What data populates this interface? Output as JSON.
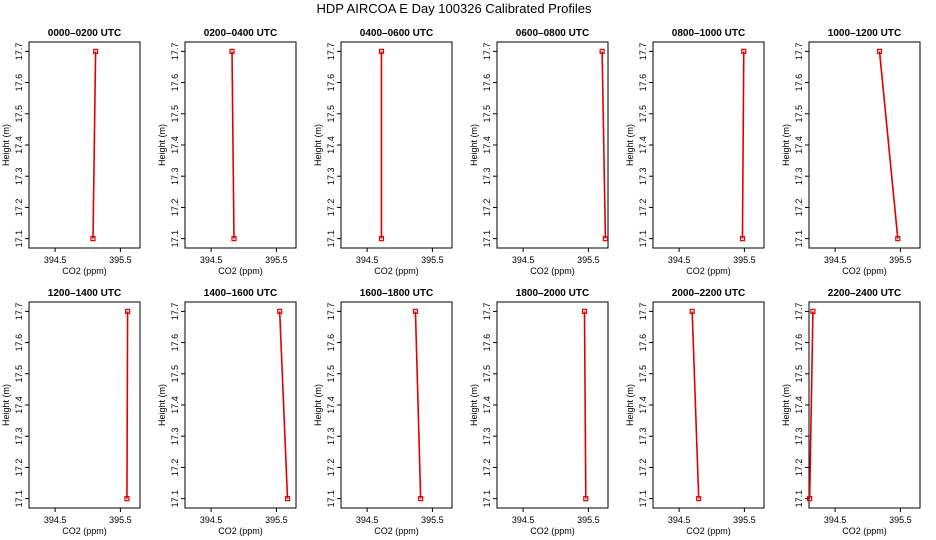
{
  "figure": {
    "title": "HDP AIRCOA E  Day 100326  Calibrated Profiles"
  },
  "chart_data": [
    {
      "type": "line",
      "title": "0000–0200 UTC",
      "xlabel": "CO2 (ppm)",
      "ylabel": "Height (m)",
      "xlim": [
        394.1,
        395.8
      ],
      "ylim": [
        17.07,
        17.73
      ],
      "x_ticks": [
        394.5,
        395.5
      ],
      "y_ticks": [
        17.1,
        17.2,
        17.3,
        17.4,
        17.5,
        17.6,
        17.7
      ],
      "series": [
        {
          "x": [
            395.08,
            395.12
          ],
          "y": [
            17.1,
            17.7
          ]
        }
      ]
    },
    {
      "type": "line",
      "title": "0200–0400 UTC",
      "xlabel": "CO2 (ppm)",
      "ylabel": "Height (m)",
      "xlim": [
        394.1,
        395.8
      ],
      "ylim": [
        17.07,
        17.73
      ],
      "x_ticks": [
        394.5,
        395.5
      ],
      "y_ticks": [
        17.1,
        17.2,
        17.3,
        17.4,
        17.5,
        17.6,
        17.7
      ],
      "series": [
        {
          "x": [
            394.85,
            394.82
          ],
          "y": [
            17.1,
            17.7
          ]
        }
      ]
    },
    {
      "type": "line",
      "title": "0400–0600 UTC",
      "xlabel": "CO2 (ppm)",
      "ylabel": "Height (m)",
      "xlim": [
        394.1,
        395.8
      ],
      "ylim": [
        17.07,
        17.73
      ],
      "x_ticks": [
        394.5,
        395.5
      ],
      "y_ticks": [
        17.1,
        17.2,
        17.3,
        17.4,
        17.5,
        17.6,
        17.7
      ],
      "series": [
        {
          "x": [
            394.72,
            394.72
          ],
          "y": [
            17.1,
            17.7
          ]
        }
      ]
    },
    {
      "type": "line",
      "title": "0600–0800 UTC",
      "xlabel": "CO2 (ppm)",
      "ylabel": "Height (m)",
      "xlim": [
        394.1,
        395.8
      ],
      "ylim": [
        17.07,
        17.73
      ],
      "x_ticks": [
        394.5,
        395.5
      ],
      "y_ticks": [
        17.1,
        17.2,
        17.3,
        17.4,
        17.5,
        17.6,
        17.7
      ],
      "series": [
        {
          "x": [
            395.76,
            395.71
          ],
          "y": [
            17.1,
            17.7
          ]
        }
      ]
    },
    {
      "type": "line",
      "title": "0800–1000 UTC",
      "xlabel": "CO2 (ppm)",
      "ylabel": "Height (m)",
      "xlim": [
        394.1,
        395.8
      ],
      "ylim": [
        17.07,
        17.73
      ],
      "x_ticks": [
        394.5,
        395.5
      ],
      "y_ticks": [
        17.1,
        17.2,
        17.3,
        17.4,
        17.5,
        17.6,
        17.7
      ],
      "series": [
        {
          "x": [
            395.47,
            395.49
          ],
          "y": [
            17.1,
            17.7
          ]
        }
      ]
    },
    {
      "type": "line",
      "title": "1000–1200 UTC",
      "xlabel": "CO2 (ppm)",
      "ylabel": "Height (m)",
      "xlim": [
        394.1,
        395.8
      ],
      "ylim": [
        17.07,
        17.73
      ],
      "x_ticks": [
        394.5,
        395.5
      ],
      "y_ticks": [
        17.1,
        17.2,
        17.3,
        17.4,
        17.5,
        17.6,
        17.7
      ],
      "series": [
        {
          "x": [
            395.46,
            395.18
          ],
          "y": [
            17.1,
            17.7
          ]
        }
      ]
    },
    {
      "type": "line",
      "title": "1200–1400 UTC",
      "xlabel": "CO2 (ppm)",
      "ylabel": "Height (m)",
      "xlim": [
        394.1,
        395.8
      ],
      "ylim": [
        17.07,
        17.73
      ],
      "x_ticks": [
        394.5,
        395.5
      ],
      "y_ticks": [
        17.1,
        17.2,
        17.3,
        17.4,
        17.5,
        17.6,
        17.7
      ],
      "series": [
        {
          "x": [
            395.6,
            395.61
          ],
          "y": [
            17.1,
            17.7
          ]
        }
      ]
    },
    {
      "type": "line",
      "title": "1400–1600 UTC",
      "xlabel": "CO2 (ppm)",
      "ylabel": "Height (m)",
      "xlim": [
        394.1,
        395.8
      ],
      "ylim": [
        17.07,
        17.73
      ],
      "x_ticks": [
        394.5,
        395.5
      ],
      "y_ticks": [
        17.1,
        17.2,
        17.3,
        17.4,
        17.5,
        17.6,
        17.7
      ],
      "series": [
        {
          "x": [
            395.67,
            395.55
          ],
          "y": [
            17.1,
            17.7
          ]
        }
      ]
    },
    {
      "type": "line",
      "title": "1600–1800 UTC",
      "xlabel": "CO2 (ppm)",
      "ylabel": "Height (m)",
      "xlim": [
        394.1,
        395.8
      ],
      "ylim": [
        17.07,
        17.73
      ],
      "x_ticks": [
        394.5,
        395.5
      ],
      "y_ticks": [
        17.1,
        17.2,
        17.3,
        17.4,
        17.5,
        17.6,
        17.7
      ],
      "series": [
        {
          "x": [
            395.32,
            395.24
          ],
          "y": [
            17.1,
            17.7
          ]
        }
      ]
    },
    {
      "type": "line",
      "title": "1800–2000 UTC",
      "xlabel": "CO2 (ppm)",
      "ylabel": "Height (m)",
      "xlim": [
        394.1,
        395.8
      ],
      "ylim": [
        17.07,
        17.73
      ],
      "x_ticks": [
        394.5,
        395.5
      ],
      "y_ticks": [
        17.1,
        17.2,
        17.3,
        17.4,
        17.5,
        17.6,
        17.7
      ],
      "series": [
        {
          "x": [
            395.46,
            395.44
          ],
          "y": [
            17.1,
            17.7
          ]
        }
      ]
    },
    {
      "type": "line",
      "title": "2000–2200 UTC",
      "xlabel": "CO2 (ppm)",
      "ylabel": "Height (m)",
      "xlim": [
        394.1,
        395.8
      ],
      "ylim": [
        17.07,
        17.73
      ],
      "x_ticks": [
        394.5,
        395.5
      ],
      "y_ticks": [
        17.1,
        17.2,
        17.3,
        17.4,
        17.5,
        17.6,
        17.7
      ],
      "series": [
        {
          "x": [
            394.8,
            394.7
          ],
          "y": [
            17.1,
            17.7
          ]
        }
      ]
    },
    {
      "type": "line",
      "title": "2200–2400 UTC",
      "xlabel": "CO2 (ppm)",
      "ylabel": "Height (m)",
      "xlim": [
        394.1,
        395.8
      ],
      "ylim": [
        17.07,
        17.73
      ],
      "x_ticks": [
        394.5,
        395.5
      ],
      "y_ticks": [
        17.1,
        17.2,
        17.3,
        17.4,
        17.5,
        17.6,
        17.7
      ],
      "series": [
        {
          "x": [
            394.11,
            394.16
          ],
          "y": [
            17.1,
            17.7
          ]
        }
      ]
    }
  ],
  "colors": {
    "series": "#e00000",
    "axes": "#000000",
    "background": "#ffffff"
  }
}
